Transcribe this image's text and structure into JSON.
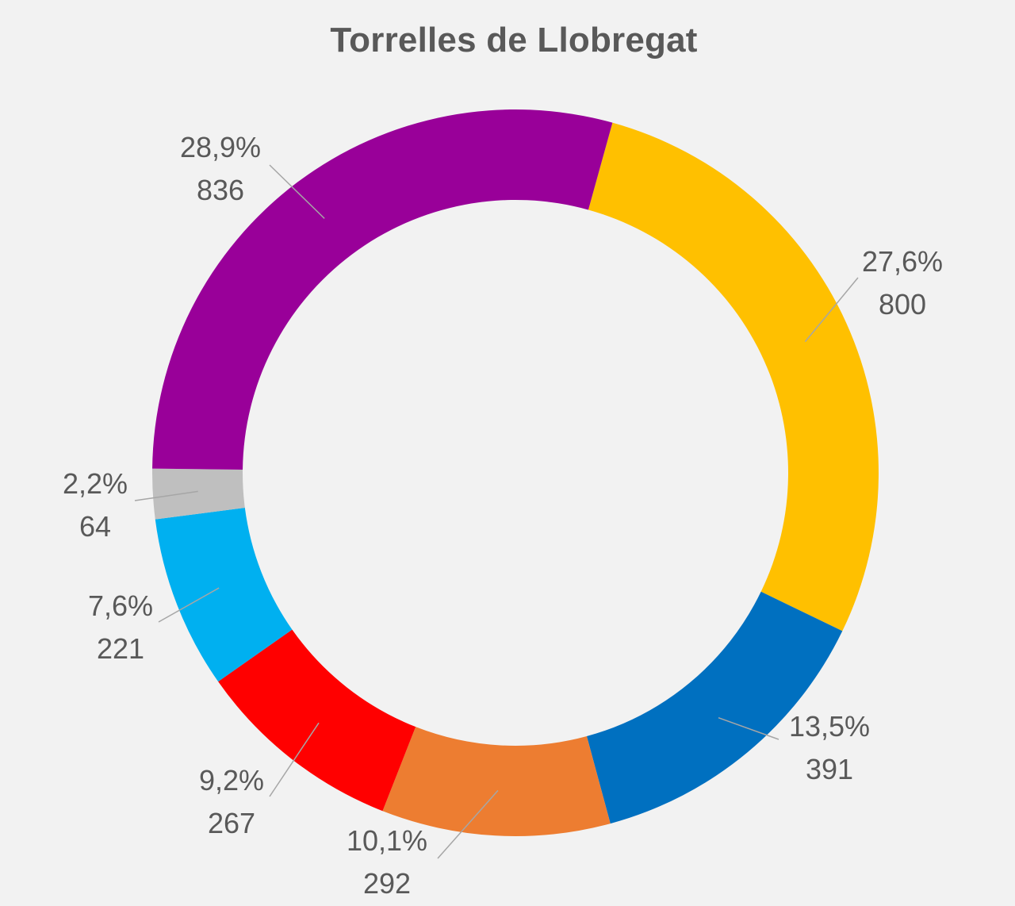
{
  "chart_data": {
    "type": "pie",
    "style": "donut",
    "title": "Torrelles de Llobregat",
    "slices": [
      {
        "value": 800,
        "percent_label": "27,6%",
        "value_label": "800",
        "color": "#FFC000"
      },
      {
        "value": 391,
        "percent_label": "13,5%",
        "value_label": "391",
        "color": "#0070C0"
      },
      {
        "value": 292,
        "percent_label": "10,1%",
        "value_label": "292",
        "color": "#ED7D31"
      },
      {
        "value": 267,
        "percent_label": "9,2%",
        "value_label": "267",
        "color": "#FF0000"
      },
      {
        "value": 221,
        "percent_label": "7,6%",
        "value_label": "221",
        "color": "#00B0F0"
      },
      {
        "value": 64,
        "percent_label": "2,2%",
        "value_label": "64",
        "color": "#BFBFBF"
      },
      {
        "value": 836,
        "percent_label": "28,9%",
        "value_label": "836",
        "color": "#990099"
      }
    ],
    "legend": "none"
  }
}
